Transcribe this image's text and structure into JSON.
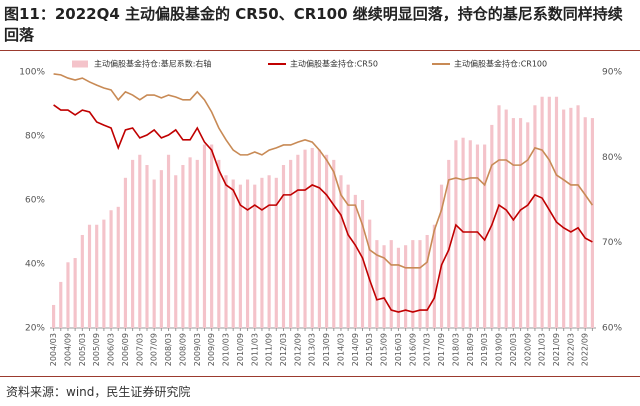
{
  "chart_data": {
    "type": "bar-line",
    "title": "图11：2022Q4 主动偏股基金的 CR50、CR100 继续明显回落，持仓的基尼系数同样持续回落",
    "source": "资料来源：wind，民生证券研究院",
    "categories": [
      "2004/03",
      null,
      "2004/09",
      null,
      "2005/03",
      null,
      "2005/09",
      null,
      "2006/03",
      null,
      "2006/09",
      null,
      "2007/03",
      null,
      "2007/09",
      null,
      "2008/03",
      null,
      "2008/09",
      null,
      "2009/03",
      null,
      "2009/09",
      null,
      "2010/03",
      null,
      "2010/09",
      null,
      "2011/03",
      null,
      "2011/09",
      null,
      "2012/03",
      null,
      "2012/09",
      null,
      "2013/03",
      null,
      "2013/09",
      null,
      "2014/03",
      null,
      "2014/09",
      null,
      "2015/03",
      null,
      "2015/09",
      null,
      "2016/03",
      null,
      "2016/09",
      null,
      "2017/03",
      null,
      "2017/09",
      null,
      "2018/03",
      null,
      "2018/09",
      null,
      "2019/03",
      null,
      "2019/09",
      null,
      "2020/03",
      null,
      "2020/09",
      null,
      "2021/03",
      null,
      "2021/09",
      null,
      "2022/03",
      null,
      "2022/09",
      null
    ],
    "series": [
      {
        "name": "主动偏股基金持仓:基尼系数:右轴",
        "kind": "bar",
        "axis": "y2",
        "color": "#f4c3ca",
        "values": [
          62.7,
          65.4,
          67.7,
          68.2,
          70.9,
          72.1,
          72.1,
          72.7,
          73.8,
          74.2,
          77.6,
          79.7,
          80.3,
          79.1,
          77.4,
          78.5,
          80.3,
          77.9,
          79.1,
          80.0,
          79.7,
          81.5,
          81.5,
          79.7,
          77.9,
          77.4,
          76.8,
          77.4,
          76.8,
          77.6,
          77.9,
          77.6,
          79.1,
          79.7,
          80.3,
          80.9,
          81.1,
          80.9,
          80.3,
          79.7,
          77.9,
          76.8,
          75.6,
          75.0,
          72.7,
          70.3,
          69.7,
          70.3,
          69.4,
          69.7,
          70.3,
          70.3,
          70.9,
          72.1,
          76.8,
          79.7,
          82.0,
          82.3,
          82.0,
          81.5,
          81.5,
          83.8,
          86.1,
          85.6,
          84.6,
          84.6,
          84.1,
          86.1,
          87.1,
          87.1,
          87.1,
          85.6,
          85.8,
          86.1,
          84.7,
          84.6
        ]
      },
      {
        "name": "主动偏股基金持仓:CR50",
        "kind": "line",
        "color": "#c00000",
        "values": [
          89.7,
          88.1,
          88.1,
          86.6,
          88.1,
          87.5,
          84.4,
          83.4,
          82.5,
          76.3,
          81.9,
          82.5,
          79.4,
          80.3,
          81.9,
          79.4,
          80.3,
          81.9,
          78.8,
          78.8,
          82.5,
          78.1,
          75.6,
          69.4,
          64.7,
          63.1,
          58.4,
          56.9,
          58.4,
          56.9,
          58.4,
          58.4,
          61.6,
          61.6,
          63.1,
          63.1,
          64.7,
          63.8,
          61.6,
          58.4,
          55.3,
          49.1,
          45.9,
          41.9,
          35.0,
          28.8,
          29.4,
          25.6,
          25.0,
          25.6,
          25.0,
          25.6,
          25.6,
          29.4,
          39.7,
          44.4,
          52.2,
          50.0,
          50.0,
          50.0,
          47.5,
          52.2,
          58.4,
          56.9,
          53.8,
          56.9,
          58.4,
          61.6,
          60.6,
          56.9,
          53.1,
          51.3,
          50.0,
          51.3,
          48.1,
          46.9
        ]
      },
      {
        "name": "主动偏股基金持仓:CR100",
        "kind": "line",
        "color": "#c88a55",
        "values": [
          99.4,
          99.1,
          98.1,
          97.5,
          98.1,
          96.9,
          95.9,
          95.0,
          94.4,
          91.3,
          93.8,
          92.8,
          91.3,
          92.8,
          92.8,
          91.9,
          92.8,
          92.2,
          91.3,
          91.3,
          93.8,
          91.3,
          87.5,
          82.5,
          78.8,
          75.6,
          74.1,
          74.1,
          75.0,
          74.1,
          75.6,
          76.3,
          77.2,
          77.2,
          78.1,
          78.8,
          78.1,
          75.6,
          72.5,
          68.8,
          61.6,
          58.4,
          58.4,
          52.2,
          44.4,
          42.8,
          41.9,
          39.7,
          39.7,
          38.8,
          38.8,
          38.8,
          40.6,
          50.6,
          56.9,
          66.3,
          66.9,
          66.3,
          66.9,
          66.9,
          64.7,
          70.9,
          72.5,
          72.5,
          70.9,
          70.9,
          72.5,
          76.3,
          75.6,
          72.5,
          67.8,
          66.3,
          64.7,
          64.7,
          61.6,
          58.4
        ]
      }
    ],
    "ylim": [
      20,
      100
    ],
    "yticks": [
      {
        "value": 20,
        "label": "20%"
      },
      {
        "value": 40,
        "label": "40%"
      },
      {
        "value": 60,
        "label": "60%"
      },
      {
        "value": 80,
        "label": "80%"
      },
      {
        "value": 100,
        "label": "100%"
      }
    ],
    "y2lim": [
      60,
      90
    ],
    "y2ticks": [
      {
        "value": 60,
        "label": "60%"
      },
      {
        "value": 70,
        "label": "70%"
      },
      {
        "value": 80,
        "label": "80%"
      },
      {
        "value": 90,
        "label": "90%"
      }
    ],
    "grid": false,
    "legend": "top"
  }
}
